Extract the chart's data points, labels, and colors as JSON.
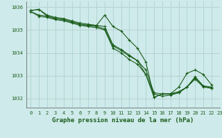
{
  "title": "Graphe pression niveau de la mer (hPa)",
  "background_color": "#ceeaea",
  "grid_color": "#b0d4d4",
  "line_color": "#1a5c1a",
  "xlim": [
    -0.5,
    23
  ],
  "ylim": [
    1031.6,
    1036.25
  ],
  "yticks": [
    1032,
    1033,
    1034,
    1035,
    1036
  ],
  "xticks": [
    0,
    1,
    2,
    3,
    4,
    5,
    6,
    7,
    8,
    9,
    10,
    11,
    12,
    13,
    14,
    15,
    16,
    17,
    18,
    19,
    20,
    21,
    22,
    23
  ],
  "series": [
    [
      1035.85,
      1035.9,
      1035.65,
      1035.55,
      1035.5,
      1035.4,
      1035.3,
      1035.25,
      1035.2,
      1035.15,
      1034.35,
      1034.15,
      1033.9,
      1033.65,
      1033.05,
      1032.05,
      1032.2,
      1032.2,
      1032.25,
      1032.5,
      1032.85,
      1032.5,
      1032.45,
      null
    ],
    [
      1035.85,
      1035.9,
      1035.6,
      1035.5,
      1035.45,
      1035.35,
      1035.25,
      1035.2,
      1035.2,
      1035.65,
      1035.15,
      1034.95,
      1034.55,
      1034.2,
      1033.6,
      1032.05,
      1032.2,
      1032.2,
      1032.5,
      1033.1,
      1033.25,
      1033.05,
      1032.6,
      null
    ],
    [
      1035.8,
      1035.65,
      1035.6,
      1035.5,
      1035.45,
      1035.35,
      1035.25,
      1035.2,
      1035.15,
      1035.05,
      1034.3,
      1034.1,
      1033.85,
      1033.65,
      1033.25,
      1032.25,
      1032.2,
      1032.2,
      1032.3,
      1032.5,
      1032.95,
      1032.55,
      1032.5,
      null
    ],
    [
      1035.8,
      1035.6,
      1035.55,
      1035.45,
      1035.4,
      1035.3,
      1035.2,
      1035.15,
      1035.1,
      1035.0,
      1034.2,
      1034.0,
      1033.7,
      1033.5,
      1033.05,
      1032.2,
      1032.1,
      1032.15,
      1032.25,
      1032.5,
      1032.9,
      1032.55,
      1032.45,
      null
    ]
  ],
  "marker": "+",
  "markersize": 3,
  "linewidth": 0.8,
  "title_fontsize": 6.5,
  "tick_fontsize": 5
}
